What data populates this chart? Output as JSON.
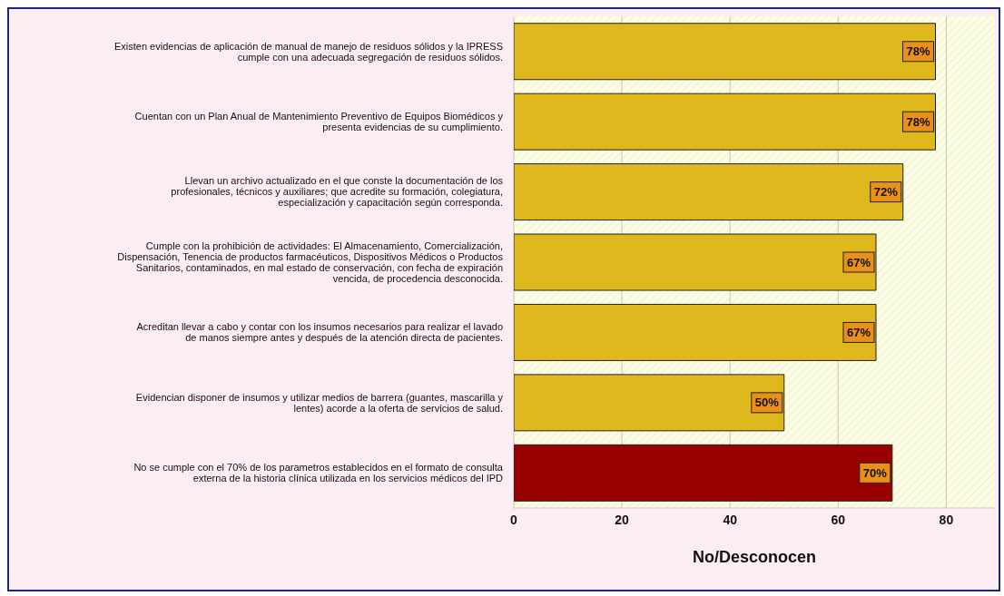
{
  "chart_data": {
    "type": "bar",
    "orientation": "horizontal",
    "xlabel": "No/Desconocen",
    "categories": [
      "Existen evidencias de aplicación de manual de manejo de residuos sólidos y la IPRESS cumple con una adecuada segregación de residuos sólidos.",
      "Cuentan con un Plan Anual de Mantenimiento Preventivo de Equipos Biomédicos y presenta evidencias de su cumplimiento.",
      "Llevan un archivo actualizado en el que conste la documentación de los profesionales, técnicos y auxiliares; que acredite su formación, colegiatura, especialización y capacitación según corresponda.",
      "Cumple con la prohibición de  actividades: El Almacenamiento, Comercialización, Dispensación, Tenencia de productos farmacéuticos, Dispositivos Médicos o Productos Sanitarios, contaminados, en mal estado de conservación, con fecha de expiración vencida, de procedencia desconocida.",
      "Acreditan llevar a cabo y contar con los insumos necesarios para realizar el lavado de manos siempre antes y después de la atención directa de pacientes.",
      "Evidencian disponer de insumos y utilizar medios de barrera (guantes, mascarilla y lentes) acorde a la oferta de servicios de salud.",
      "No se cumple con el 70% de los parametros  establecidos en el formato de consulta externa de la historia clínica utilizada en los servicios médicos del IPD"
    ],
    "values": [
      78,
      78,
      72,
      67,
      67,
      50,
      70
    ],
    "colors": [
      "#dfb81e",
      "#dfb81e",
      "#dfb81e",
      "#dfb81e",
      "#dfb81e",
      "#dfb81e",
      "#990000"
    ],
    "value_labels": [
      "78%",
      "78%",
      "72%",
      "67%",
      "67%",
      "50%",
      "70%"
    ],
    "xlim": [
      0,
      89
    ],
    "xticks": [
      0,
      20,
      40,
      60,
      80
    ],
    "grid": "x",
    "legend": false
  }
}
